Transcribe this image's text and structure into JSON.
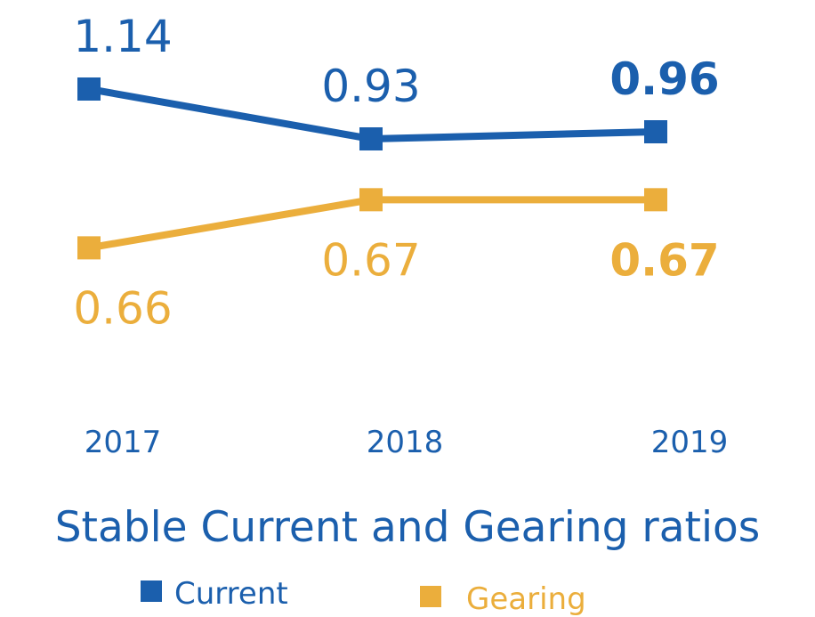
{
  "chart_data": {
    "type": "line",
    "title": "Stable Current and Gearing ratios",
    "xlabel": "",
    "ylabel": "",
    "categories": [
      "2017",
      "2018",
      "2019"
    ],
    "grid": false,
    "legend_placement": "bottom",
    "series": [
      {
        "name": "Current",
        "color": "#1b5fad",
        "values": [
          1.14,
          0.93,
          0.96
        ],
        "labels": [
          "1.14",
          "0.93",
          "0.96"
        ],
        "ylim": [
          0.39,
          1.29
        ],
        "label_position": "above"
      },
      {
        "name": "Gearing",
        "color": "#ebae3c",
        "values": [
          0.66,
          0.67,
          0.67
        ],
        "labels": [
          "0.66",
          "0.67",
          "0.67"
        ],
        "ylim": [
          0.656,
          0.7004
        ],
        "label_position": "below"
      }
    ],
    "highlight_last_label": true
  }
}
